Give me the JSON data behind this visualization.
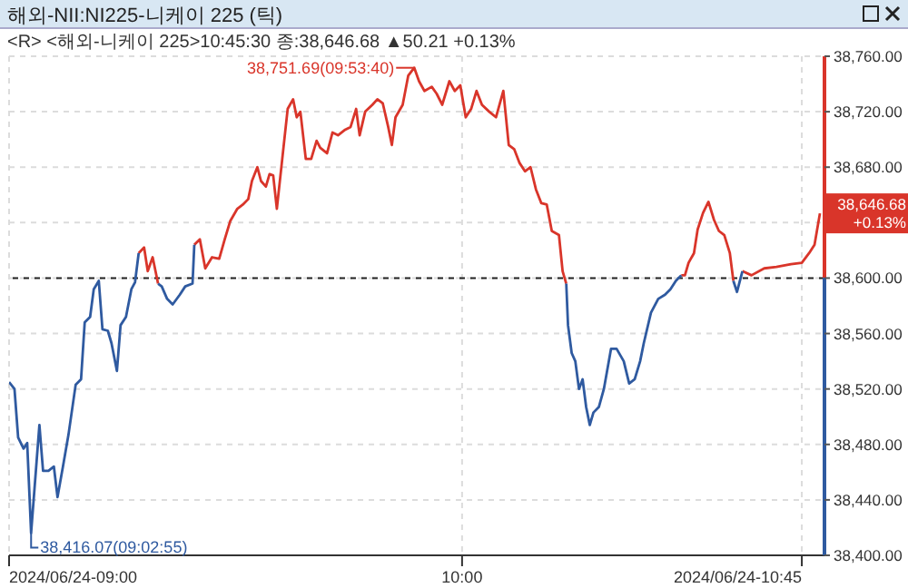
{
  "chart_data": {
    "type": "line",
    "title": "해외-NII:NI225-니케이 225 (틱)",
    "subtitle": "<R> <해외-니케이 225>10:45:30 종:38,646.68 ▲50.21 +0.13%",
    "x": [
      "2024-06-24T09:00:00",
      "2024-06-24T09:00:43",
      "2024-06-24T09:01:12",
      "2024-06-24T09:01:55",
      "2024-06-24T09:02:24",
      "2024-06-24T09:02:55",
      "2024-06-24T09:03:22",
      "2024-06-24T09:04:01",
      "2024-06-24T09:04:30",
      "2024-06-24T09:05:13",
      "2024-06-24T09:05:56",
      "2024-06-24T09:06:25",
      "2024-06-24T09:07:08",
      "2024-06-24T09:07:52",
      "2024-06-24T09:08:49",
      "2024-06-24T09:09:32",
      "2024-06-24T09:10:01",
      "2024-06-24T09:10:44",
      "2024-06-24T09:11:13",
      "2024-06-24T09:11:53",
      "2024-06-24T09:12:22",
      "2024-06-24T09:13:05",
      "2024-06-24T09:13:34",
      "2024-06-24T09:14:17",
      "2024-06-24T09:14:46",
      "2024-06-24T09:15:29",
      "2024-06-24T09:16:12",
      "2024-06-24T09:16:41",
      "2024-06-24T09:17:10",
      "2024-06-24T09:17:53",
      "2024-06-24T09:18:22",
      "2024-06-24T09:19:01",
      "2024-06-24T09:19:44",
      "2024-06-24T09:20:13",
      "2024-06-24T09:20:56",
      "2024-06-24T09:21:40",
      "2024-06-24T09:22:37",
      "2024-06-24T09:23:20",
      "2024-06-24T09:24:18",
      "2024-06-24T09:24:32",
      "2024-06-24T09:25:16",
      "2024-06-24T09:25:59",
      "2024-06-24T09:26:53",
      "2024-06-24T09:27:50",
      "2024-06-24T09:28:34",
      "2024-06-24T09:29:17",
      "2024-06-24T09:30:14",
      "2024-06-24T09:30:58",
      "2024-06-24T09:31:41",
      "2024-06-24T09:32:10",
      "2024-06-24T09:32:53",
      "2024-06-24T09:33:22",
      "2024-06-24T09:34:01",
      "2024-06-24T09:34:30",
      "2024-06-24T09:34:59",
      "2024-06-24T09:35:28",
      "2024-06-24T09:36:11",
      "2024-06-24T09:36:54",
      "2024-06-24T09:37:37",
      "2024-06-24T09:38:06",
      "2024-06-24T09:38:35",
      "2024-06-24T09:39:18",
      "2024-06-24T09:40:01",
      "2024-06-24T09:40:44",
      "2024-06-24T09:41:13",
      "2024-06-24T09:42:07",
      "2024-06-24T09:42:50",
      "2024-06-24T09:43:34",
      "2024-06-24T09:44:31",
      "2024-06-24T09:45:14",
      "2024-06-24T09:45:58",
      "2024-06-24T09:46:26",
      "2024-06-24T09:47:10",
      "2024-06-24T09:48:07",
      "2024-06-24T09:48:47",
      "2024-06-24T09:49:30",
      "2024-06-24T09:50:13",
      "2024-06-24T09:50:42",
      "2024-06-24T09:51:11",
      "2024-06-24T09:52:08",
      "2024-06-24T09:52:52",
      "2024-06-24T09:53:40",
      "2024-06-24T09:54:18",
      "2024-06-24T09:55:01",
      "2024-06-24T09:55:59",
      "2024-06-24T09:56:38",
      "2024-06-24T09:57:22",
      "2024-06-24T09:58:19",
      "2024-06-24T09:59:02",
      "2024-06-24T09:59:46",
      "2024-06-24T10:00:29",
      "2024-06-24T10:01:12",
      "2024-06-24T10:01:55",
      "2024-06-24T10:02:38",
      "2024-06-24T10:03:36",
      "2024-06-24T10:04:30",
      "2024-06-24T10:05:28",
      "2024-06-24T10:06:11",
      "2024-06-24T10:06:54",
      "2024-06-24T10:07:37",
      "2024-06-24T10:08:20",
      "2024-06-24T10:09:04",
      "2024-06-24T10:09:47",
      "2024-06-24T10:10:30",
      "2024-06-24T10:11:13",
      "2024-06-24T10:11:53",
      "2024-06-24T10:12:50",
      "2024-06-24T10:13:19",
      "2024-06-24T10:13:48",
      "2024-06-24T10:14:02",
      "2024-06-24T10:14:31",
      "2024-06-24T10:15:00",
      "2024-06-24T10:15:29",
      "2024-06-24T10:15:58",
      "2024-06-24T10:16:26",
      "2024-06-24T10:16:55",
      "2024-06-24T10:17:24",
      "2024-06-24T10:18:07",
      "2024-06-24T10:18:47",
      "2024-06-24T10:19:44",
      "2024-06-24T10:20:28",
      "2024-06-24T10:21:25",
      "2024-06-24T10:22:08",
      "2024-06-24T10:22:52",
      "2024-06-24T10:23:35",
      "2024-06-24T10:24:04",
      "2024-06-24T10:25:01",
      "2024-06-24T10:25:59",
      "2024-06-24T10:26:53",
      "2024-06-24T10:27:36",
      "2024-06-24T10:28:19",
      "2024-06-24T10:29:02",
      "2024-06-24T10:29:31",
      "2024-06-24T10:30:00",
      "2024-06-24T10:30:43",
      "2024-06-24T10:31:12",
      "2024-06-24T10:31:55",
      "2024-06-24T10:32:38",
      "2024-06-24T10:33:22",
      "2024-06-24T10:34:01",
      "2024-06-24T10:34:44",
      "2024-06-24T10:35:28",
      "2024-06-24T10:35:56",
      "2024-06-24T10:36:25",
      "2024-06-24T10:37:08",
      "2024-06-24T10:38:20",
      "2024-06-24T10:40:01",
      "2024-06-24T10:41:38",
      "2024-06-24T10:43:34",
      "2024-06-24T10:45:00",
      "2024-06-24T10:45:58",
      "2024-06-24T10:46:41",
      "2024-06-24T10:47:24"
    ],
    "series": [
      {
        "color": "#d9352a",
        "values": [
          null,
          null,
          null,
          null,
          null,
          null,
          null,
          null,
          null,
          null,
          null,
          null,
          null,
          null,
          null,
          null,
          null,
          null,
          null,
          null,
          null,
          null,
          null,
          null,
          null,
          null,
          null,
          null,
          38618,
          38622,
          38605,
          38615,
          38596,
          null,
          null,
          null,
          null,
          null,
          null,
          38624,
          38628,
          38607,
          38615,
          38614,
          38628,
          38641,
          38650,
          38653,
          38657,
          38670,
          38680,
          38670,
          38666,
          38675,
          38674,
          38650,
          38686,
          38722,
          38729,
          38716,
          38720,
          38686,
          38686,
          38699,
          38694,
          38690,
          38705,
          38703,
          38707,
          38709,
          38722,
          38703,
          38720,
          38725,
          38729,
          38726,
          38709,
          38696,
          38716,
          38725,
          38746,
          38751.69,
          38742,
          38735,
          38738,
          38733,
          38725,
          38742,
          38735,
          38739,
          38716,
          38722,
          38735,
          38725,
          38720,
          38716,
          38735,
          38696,
          38693,
          38683,
          38677,
          38680,
          38664,
          38654,
          38653,
          38634,
          38631,
          38605,
          38596,
          null,
          null,
          null,
          null,
          null,
          null,
          null,
          null,
          null,
          null,
          null,
          null,
          null,
          null,
          null,
          null,
          null,
          null,
          null,
          null,
          null,
          null,
          38602,
          38602,
          38611,
          38618,
          38635,
          38647,
          38655,
          38642,
          38634,
          38631,
          38618,
          38598,
          null,
          38605,
          38602,
          38607,
          38608,
          38610,
          38611,
          38618,
          38624,
          38646.68
        ]
      },
      {
        "color": "#2f5aa0",
        "values": [
          38525,
          38520,
          38485,
          38477,
          38481,
          38416.07,
          38448,
          38494,
          38461,
          38461,
          38464,
          38442,
          38464,
          38487,
          38523,
          38527,
          38568,
          38572,
          38592,
          38598,
          38563,
          38562,
          38553,
          38533,
          38566,
          38572,
          38592,
          38597,
          38618,
          null,
          null,
          null,
          38596,
          38594,
          38585,
          38581,
          38588,
          38594,
          38596,
          38624,
          null,
          null,
          null,
          null,
          null,
          null,
          null,
          null,
          null,
          null,
          null,
          null,
          null,
          null,
          null,
          null,
          null,
          null,
          null,
          null,
          null,
          null,
          null,
          null,
          null,
          null,
          null,
          null,
          null,
          null,
          null,
          null,
          null,
          null,
          null,
          null,
          null,
          null,
          null,
          null,
          null,
          null,
          null,
          null,
          null,
          null,
          null,
          null,
          null,
          null,
          null,
          null,
          null,
          null,
          null,
          null,
          null,
          null,
          null,
          null,
          null,
          null,
          null,
          null,
          null,
          null,
          null,
          null,
          38596,
          38566,
          38546,
          38540,
          38520,
          38527,
          38507,
          38494,
          38503,
          38507,
          38520,
          38549,
          38549,
          38540,
          38524,
          38527,
          38540,
          38553,
          38575,
          38585,
          38588,
          38592,
          38598,
          38602,
          null,
          null,
          null,
          null,
          null,
          null,
          null,
          null,
          null,
          null,
          38598,
          38590,
          38605,
          null,
          null,
          null,
          null,
          null,
          null,
          null,
          null
        ]
      }
    ],
    "xlim": [
      "2024-06-24T09:00",
      "2024-06-24T10:48"
    ],
    "xticks": [
      {
        "value": "2024-06-24T09:00",
        "label": "2024/06/24-09:00"
      },
      {
        "value": "2024-06-24T10:00",
        "label": "10:00"
      },
      {
        "value": "2024-06-24T10:45",
        "label": "2024/06/24-10:45"
      }
    ],
    "ylim": [
      38400,
      38760
    ],
    "yticks": [
      {
        "value": 38400,
        "label": "38,400.00"
      },
      {
        "value": 38440,
        "label": "38,440.00"
      },
      {
        "value": 38480,
        "label": "38,480.00"
      },
      {
        "value": 38520,
        "label": "38,520.00"
      },
      {
        "value": 38560,
        "label": "38,560.00"
      },
      {
        "value": 38600,
        "label": "38,600.00"
      },
      {
        "value": 38640,
        "label": null
      },
      {
        "value": 38680,
        "label": "38,680.00"
      },
      {
        "value": 38720,
        "label": "38,720.00"
      },
      {
        "value": 38760,
        "label": "38,760.00"
      }
    ],
    "ref_lines": [
      {
        "axis": "y",
        "value": 38600,
        "color": "#222222",
        "line_style": "dashed"
      }
    ],
    "annotations": [
      {
        "text": "38,751.69(09:53:40)",
        "x": "2024-06-24T09:53:40",
        "y": 38751.69
      },
      {
        "text": "38,416.07(09:02:55)",
        "x": "2024-06-24T09:02:55",
        "y": 38416.07
      },
      {
        "text": "38,646.68\n+0.13%",
        "x": "2024-06-24T10:47:24",
        "y": 38646.68
      }
    ],
    "grid": true,
    "marker": "none",
    "line_style": "solid"
  }
}
